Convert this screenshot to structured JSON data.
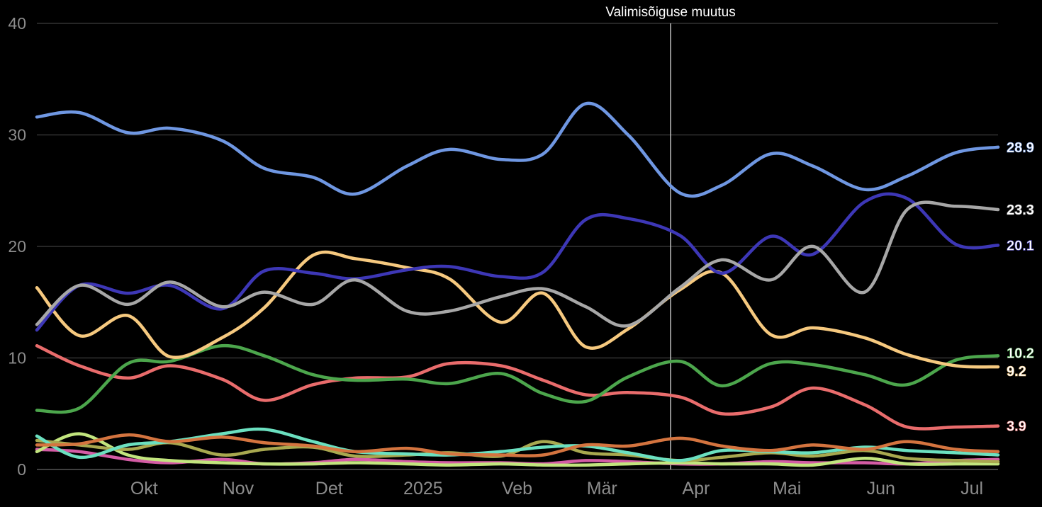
{
  "chart_data": {
    "type": "line",
    "title": "",
    "xlabel": "",
    "ylabel": "",
    "ylim": [
      0,
      40
    ],
    "y_ticks": [
      "0",
      "10",
      "20",
      "30",
      "40"
    ],
    "x_ticks": [
      "Okt",
      "Nov",
      "Det",
      "2025",
      "Veb",
      "Mär",
      "Apr",
      "Mai",
      "Jun",
      "Jul"
    ],
    "grid": true,
    "legend": "none",
    "annotation": {
      "text": "Valimisõiguse muutus",
      "x": "2025-03-29"
    },
    "x": [
      "2024-09-01",
      "2024-09-15",
      "2024-10-01",
      "2024-10-15",
      "2024-11-01",
      "2024-11-15",
      "2024-12-01",
      "2024-12-15",
      "2025-01-01",
      "2025-01-15",
      "2025-02-01",
      "2025-02-15",
      "2025-03-01",
      "2025-03-15",
      "2025-04-01",
      "2025-04-15",
      "2025-05-01",
      "2025-05-15",
      "2025-06-01",
      "2025-06-15",
      "2025-07-01",
      "2025-07-15"
    ],
    "series": [
      {
        "color": "#6f97e2",
        "end_label": "28.9",
        "values": [
          31.6,
          32,
          30.2,
          30.6,
          29.5,
          27,
          26.2,
          24.7,
          27.2,
          28.7,
          27.8,
          28.3,
          32.8,
          30,
          24.8,
          25.5,
          28.3,
          27.2,
          25.1,
          26.3,
          28.4,
          28.9
        ]
      },
      {
        "color": "#a7a7a7",
        "end_label": "23.3",
        "values": [
          13,
          16.5,
          14.8,
          16.8,
          14.6,
          15.9,
          14.8,
          17,
          14.2,
          14.2,
          15.5,
          16.2,
          14.6,
          12.9,
          16.3,
          18.8,
          17,
          20,
          15.9,
          23.3,
          23.6,
          23.3
        ]
      },
      {
        "color": "#3d37b6",
        "end_label": "20.1",
        "values": [
          12.5,
          16.5,
          15.8,
          16.5,
          14.4,
          17.8,
          17.6,
          17.1,
          17.9,
          18.2,
          17.3,
          17.7,
          22.4,
          22.5,
          21,
          17.6,
          20.9,
          19.3,
          24,
          24.3,
          20.2,
          20.1
        ]
      },
      {
        "color": "#f6c97f",
        "end_label": "9.2",
        "values": [
          16.3,
          12,
          13.8,
          10.1,
          11.8,
          14.5,
          19.2,
          18.9,
          18.1,
          17.1,
          13.2,
          15.8,
          11,
          12.6,
          16.1,
          17.6,
          12.1,
          12.7,
          11.8,
          10.3,
          9.3,
          9.2
        ]
      },
      {
        "color": "#4ca64c",
        "end_label": "10.2",
        "values": [
          5.3,
          5.5,
          9.5,
          9.7,
          11.1,
          10.2,
          8.5,
          8,
          8.1,
          7.7,
          8.6,
          6.8,
          6.1,
          8.3,
          9.7,
          7.5,
          9.5,
          9.4,
          8.5,
          7.6,
          9.8,
          10.2
        ]
      },
      {
        "color": "#e96c6c",
        "end_label": "3.9",
        "values": [
          11.1,
          9.3,
          8.2,
          9.3,
          8.1,
          6.2,
          7.6,
          8.2,
          8.3,
          9.5,
          9.3,
          8,
          6.7,
          6.9,
          6.5,
          5,
          5.6,
          7.3,
          5.8,
          3.8,
          3.8,
          3.9
        ]
      },
      {
        "color": "#d4743f",
        "end_label": "",
        "values": [
          2.2,
          2.3,
          3.1,
          2.5,
          2.9,
          2.4,
          2.1,
          1.6,
          1.9,
          1.4,
          1.3,
          1.3,
          2.2,
          2.1,
          2.8,
          2.1,
          1.7,
          2.2,
          1.8,
          2.5,
          1.8,
          1.6
        ]
      },
      {
        "color": "#6be0c0",
        "end_label": "",
        "values": [
          3,
          1.1,
          2.2,
          2.5,
          3.2,
          3.6,
          2.5,
          1.6,
          1.4,
          1.3,
          1.6,
          2,
          2.1,
          1.5,
          0.8,
          1.7,
          1.6,
          1.5,
          2,
          1.7,
          1.5,
          1.3
        ]
      },
      {
        "color": "#a8a84f",
        "end_label": "",
        "values": [
          2.6,
          2.2,
          1.8,
          2.4,
          1.3,
          1.8,
          2,
          1.2,
          1.3,
          1.5,
          1.2,
          2.5,
          1.5,
          1.3,
          0.8,
          1.1,
          1.5,
          1.2,
          1.7,
          1,
          0.8,
          0.7
        ]
      },
      {
        "color": "#c2e57e",
        "end_label": "",
        "values": [
          1.6,
          3.2,
          1.3,
          0.8,
          0.6,
          0.5,
          0.5,
          0.6,
          0.5,
          0.4,
          0.5,
          0.4,
          0.4,
          0.5,
          0.6,
          0.5,
          0.5,
          0.4,
          1,
          0.5,
          0.5,
          0.5
        ]
      },
      {
        "color": "#d45ca5",
        "end_label": "",
        "values": [
          1.8,
          1.6,
          0.9,
          0.6,
          0.9,
          0.5,
          0.6,
          0.9,
          0.7,
          0.6,
          0.6,
          0.5,
          0.8,
          0.7,
          0.5,
          0.5,
          0.7,
          0.6,
          0.6,
          0.5,
          0.8,
          0.9
        ]
      }
    ]
  }
}
